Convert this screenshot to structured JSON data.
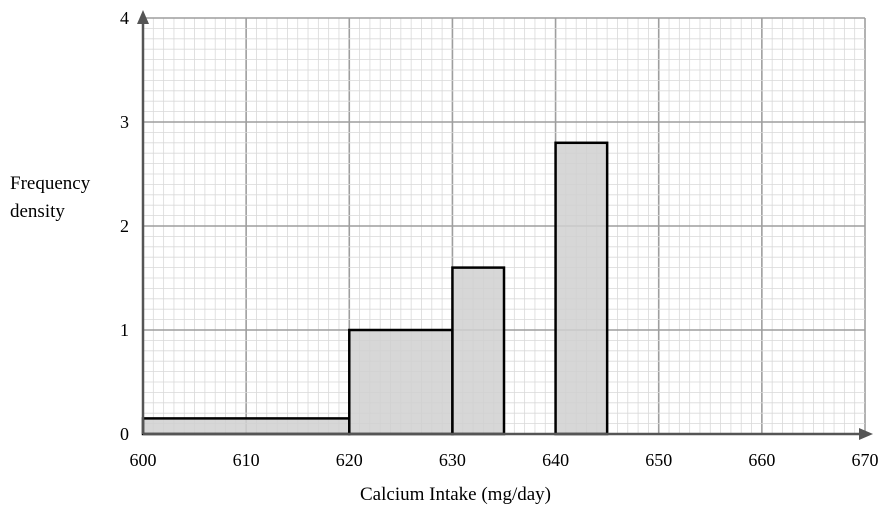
{
  "chart_data": {
    "type": "bar",
    "subtype": "histogram",
    "title": "",
    "xlabel": "Calcium Intake (mg/day)",
    "ylabel": [
      "Frequency",
      "density"
    ],
    "xlim": [
      600,
      670
    ],
    "ylim": [
      0,
      4
    ],
    "x_ticks": [
      "600",
      "610",
      "620",
      "630",
      "640",
      "650",
      "660",
      "670"
    ],
    "y_ticks": [
      "0",
      "1",
      "2",
      "3",
      "4"
    ],
    "grid": true,
    "bins": [
      {
        "x0": 600,
        "x1": 620,
        "value": 0.15
      },
      {
        "x0": 620,
        "x1": 630,
        "value": 1.0
      },
      {
        "x0": 630,
        "x1": 635,
        "value": 1.6
      },
      {
        "x0": 640,
        "x1": 645,
        "value": 2.8
      }
    ],
    "colors": {
      "bar_fill": "#d0d0d0",
      "bar_stroke": "#000000",
      "major_grid": "#9e9e9e",
      "minor_grid": "#d9d9d9",
      "axis": "#555555"
    }
  }
}
